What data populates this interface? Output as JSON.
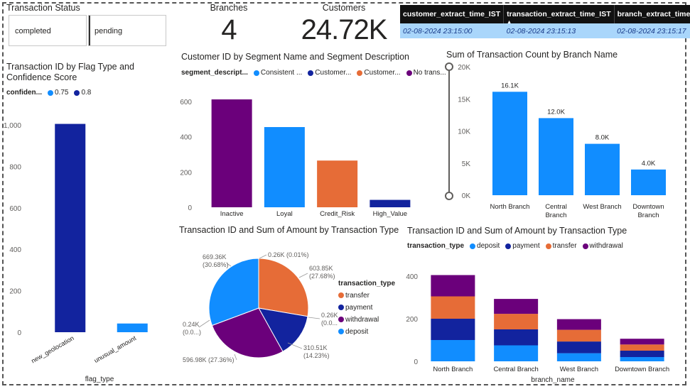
{
  "slicer": {
    "title": "Transaction Status",
    "options": [
      "completed",
      "pending"
    ]
  },
  "cards": {
    "branches": {
      "label": "Branches",
      "value": "4"
    },
    "customers": {
      "label": "Customers",
      "value": "24.72K"
    }
  },
  "extract_table": {
    "headers": [
      "customer_extract_time_IST",
      "transaction_extract_time_IST",
      "branch_extract_time_IST"
    ],
    "values": [
      "02-08-2024 23:15:00",
      "02-08-2024 23:15:13",
      "02-08-2024 23:15:17"
    ],
    "sort_indicator": "▲"
  },
  "colors": {
    "light_blue": "#118dff",
    "dark_blue": "#12239e",
    "orange": "#e66c37",
    "purple": "#6b007b"
  },
  "chart_data": [
    {
      "id": "flag_chart",
      "type": "bar",
      "title": "Transaction ID by Flag Type and Confidence Score",
      "legend_title": "confiden...",
      "legend": [
        {
          "name": "0.75",
          "color": "#118dff"
        },
        {
          "name": "0.8",
          "color": "#12239e"
        }
      ],
      "categories": [
        "new_geolocation",
        "unusual_amount"
      ],
      "values": [
        1005,
        42
      ],
      "bar_colors": [
        "#12239e",
        "#118dff"
      ],
      "xlabel": "flag_type",
      "ylabel": "",
      "yticks": [
        0,
        200,
        400,
        600,
        800,
        1000
      ],
      "ylim": [
        0,
        1000
      ]
    },
    {
      "id": "segment_chart",
      "type": "bar",
      "title": "Customer ID by Segment Name and Segment Description",
      "legend_title": "segment_descript...",
      "legend": [
        {
          "name": "Consistent ...",
          "color": "#118dff"
        },
        {
          "name": "Customer...",
          "color": "#12239e"
        },
        {
          "name": "Customer...",
          "color": "#e66c37"
        },
        {
          "name": "No trans...",
          "color": "#6b007b"
        }
      ],
      "categories": [
        "Inactive",
        "Loyal",
        "Credit_Risk",
        "High_Value"
      ],
      "values": [
        612,
        455,
        265,
        42
      ],
      "bar_colors": [
        "#6b007b",
        "#118dff",
        "#e66c37",
        "#12239e"
      ],
      "yticks": [
        0,
        200,
        400,
        600
      ],
      "ylim": [
        0,
        600
      ]
    },
    {
      "id": "branch_count_chart",
      "type": "bar",
      "title": "Sum of Transaction Count by Branch Name",
      "categories": [
        "North Branch",
        "Central Branch",
        "West Branch",
        "Downtown Branch"
      ],
      "values": [
        16.1,
        12.0,
        8.0,
        4.0
      ],
      "data_labels": [
        "16.1K",
        "12.0K",
        "8.0K",
        "4.0K"
      ],
      "bar_color": "#118dff",
      "ytick_labels": [
        "0K",
        "5K",
        "10K",
        "15K",
        "20K"
      ],
      "yticks": [
        0,
        5,
        10,
        15,
        20
      ],
      "ylim": [
        0,
        20
      ],
      "slider_labels": [
        "20K",
        "0K"
      ]
    },
    {
      "id": "type_pie",
      "type": "pie",
      "title": "Transaction ID and Sum of Amount by Transaction Type",
      "legend_title": "transaction_type",
      "legend": [
        {
          "name": "transfer",
          "color": "#e66c37"
        },
        {
          "name": "payment",
          "color": "#12239e"
        },
        {
          "name": "withdrawal",
          "color": "#6b007b"
        },
        {
          "name": "deposit",
          "color": "#118dff"
        }
      ],
      "slices": [
        {
          "name": "transfer",
          "value": 603.85,
          "color": "#e66c37"
        },
        {
          "name": "payment",
          "value": 310.51,
          "color": "#12239e"
        },
        {
          "name": "withdrawal",
          "value": 596.98,
          "color": "#6b007b"
        },
        {
          "name": "deposit",
          "value": 669.36,
          "color": "#118dff"
        }
      ],
      "labels": [
        {
          "lines": [
            "0.26K (0.01%)"
          ]
        },
        {
          "lines": [
            "603.85K",
            "(27.68%)"
          ]
        },
        {
          "lines": [
            "0.26K",
            "(0.0...)"
          ]
        },
        {
          "lines": [
            "310.51K",
            "(14.23%)"
          ]
        },
        {
          "lines": [
            "596.98K (27.36%)"
          ]
        },
        {
          "lines": [
            "0.24K",
            "(0.0...)"
          ]
        },
        {
          "lines": [
            "669.36K",
            "(30.68%)"
          ]
        }
      ]
    },
    {
      "id": "stacked_chart",
      "type": "bar",
      "title": "Transaction ID and Sum of Amount by Transaction Type",
      "legend_title": "transaction_type",
      "legend": [
        {
          "name": "deposit",
          "color": "#118dff"
        },
        {
          "name": "payment",
          "color": "#12239e"
        },
        {
          "name": "transfer",
          "color": "#e66c37"
        },
        {
          "name": "withdrawal",
          "color": "#6b007b"
        }
      ],
      "categories": [
        "North Branch",
        "Central Branch",
        "West Branch",
        "Downtown Branch"
      ],
      "series": [
        {
          "name": "deposit",
          "color": "#118dff",
          "values": [
            100,
            75,
            38,
            20
          ]
        },
        {
          "name": "payment",
          "color": "#12239e",
          "values": [
            100,
            75,
            55,
            30
          ]
        },
        {
          "name": "transfer",
          "color": "#e66c37",
          "values": [
            105,
            73,
            55,
            29
          ]
        },
        {
          "name": "withdrawal",
          "color": "#6b007b",
          "values": [
            100,
            70,
            50,
            27
          ]
        }
      ],
      "xlabel": "branch_name",
      "yticks": [
        0,
        200,
        400
      ],
      "ylim": [
        0,
        420
      ]
    }
  ]
}
